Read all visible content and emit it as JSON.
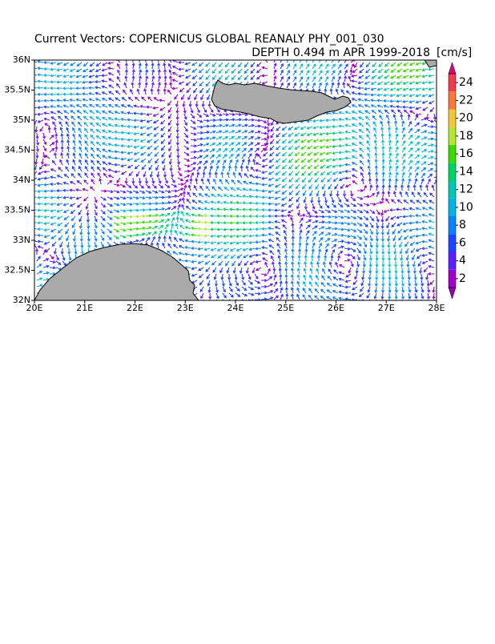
{
  "chart_data": {
    "type": "vector-map",
    "title": "Current Vectors: COPERNICUS GLOBAL REANALY PHY_001_030",
    "subtitle": "DEPTH 0.494 m  APR 1999-2018",
    "units": "[cm/s]",
    "xlim": [
      20,
      28
    ],
    "ylim": [
      32,
      36
    ],
    "xticks": [
      {
        "value": 20,
        "label": "20E"
      },
      {
        "value": 21,
        "label": "21E"
      },
      {
        "value": 22,
        "label": "22E"
      },
      {
        "value": 23,
        "label": "23E"
      },
      {
        "value": 24,
        "label": "24E"
      },
      {
        "value": 25,
        "label": "25E"
      },
      {
        "value": 26,
        "label": "26E"
      },
      {
        "value": 27,
        "label": "27E"
      },
      {
        "value": 28,
        "label": "28E"
      }
    ],
    "yticks": [
      {
        "value": 32,
        "label": "32N"
      },
      {
        "value": 32.5,
        "label": "32.5N"
      },
      {
        "value": 33,
        "label": "33N"
      },
      {
        "value": 33.5,
        "label": "33.5N"
      },
      {
        "value": 34,
        "label": "34N"
      },
      {
        "value": 34.5,
        "label": "34.5N"
      },
      {
        "value": 35,
        "label": "35N"
      },
      {
        "value": 35.5,
        "label": "35.5N"
      },
      {
        "value": 36,
        "label": "36N"
      }
    ],
    "colorbar": {
      "lim": [
        1,
        25
      ],
      "ticks": [
        2,
        4,
        6,
        8,
        10,
        12,
        14,
        16,
        18,
        20,
        22,
        24
      ],
      "colors": [
        "#a000c8",
        "#5a1eff",
        "#1e46ff",
        "#0a82ff",
        "#00b4e6",
        "#00c8b4",
        "#00d264",
        "#3cdc00",
        "#b4e632",
        "#f0c83c",
        "#f5783c",
        "#f03c50"
      ],
      "over_color": "#e6007d",
      "under_color": "#9600b4"
    }
  }
}
